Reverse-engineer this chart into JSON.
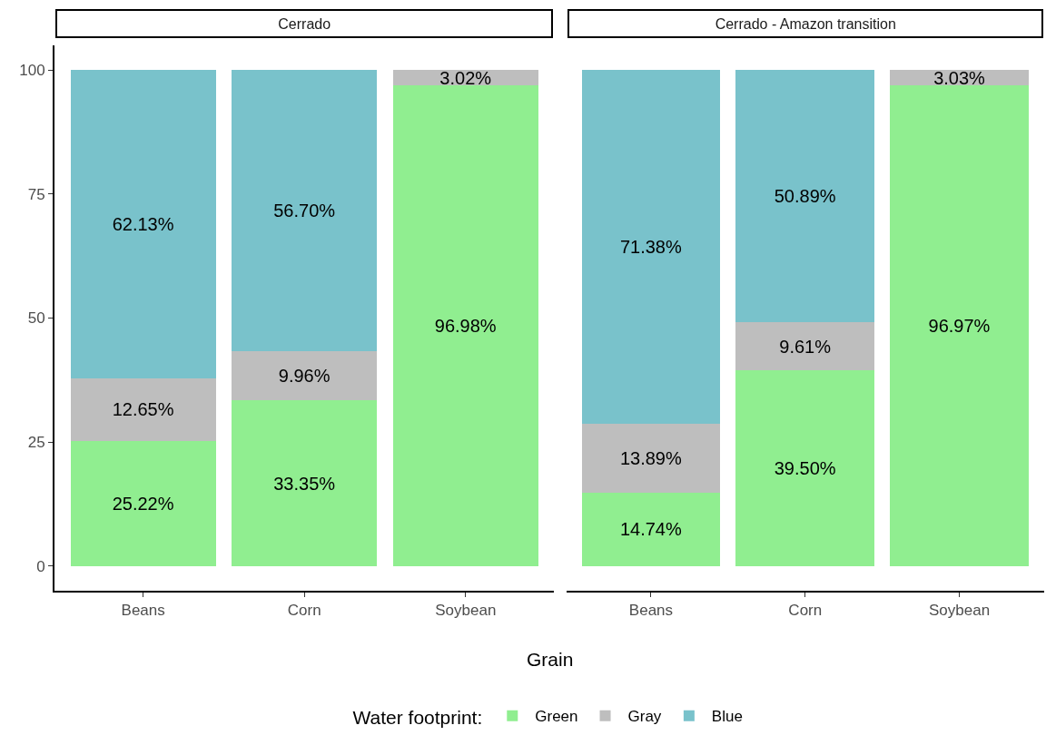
{
  "chart_data": [
    {
      "type": "bar",
      "title": "Cerrado",
      "xlabel": "Grain",
      "legend_title": "Water footprint:",
      "legend": "bottom",
      "stacked": true,
      "categories": [
        "Beans",
        "Corn",
        "Soybean"
      ],
      "ylim": [
        -5,
        105
      ],
      "yticks": [
        0,
        25,
        50,
        75,
        100
      ],
      "grid": false,
      "series": [
        {
          "name": "Green",
          "color": "#90ee90",
          "values": [
            25.22,
            33.35,
            96.98
          ],
          "value_labels": [
            "25.22%",
            "33.35%",
            "96.98%"
          ]
        },
        {
          "name": "Gray",
          "color": "#bebebe",
          "values": [
            12.65,
            9.96,
            3.02
          ],
          "value_labels": [
            "12.65%",
            "9.96%",
            "3.02%"
          ]
        },
        {
          "name": "Blue",
          "color": "#79c2cb",
          "values": [
            62.13,
            56.7,
            0
          ],
          "value_labels": [
            "62.13%",
            "56.70%",
            null
          ]
        }
      ]
    },
    {
      "type": "bar",
      "title": "Cerrado - Amazon transition",
      "stacked": true,
      "categories": [
        "Beans",
        "Corn",
        "Soybean"
      ],
      "tick_labels": "x",
      "grid": false,
      "series": [
        {
          "color": "#90ee90",
          "values": [
            14.74,
            39.5,
            96.97
          ],
          "value_labels": [
            "14.74%",
            "39.50%",
            "96.97%"
          ]
        },
        {
          "color": "#bebebe",
          "values": [
            13.89,
            9.61,
            3.03
          ],
          "value_labels": [
            "13.89%",
            "9.61%",
            "3.03%"
          ]
        },
        {
          "color": "#79c2cb",
          "values": [
            71.38,
            50.89,
            0
          ],
          "value_labels": [
            "71.38%",
            "50.89%",
            null
          ]
        }
      ]
    }
  ]
}
